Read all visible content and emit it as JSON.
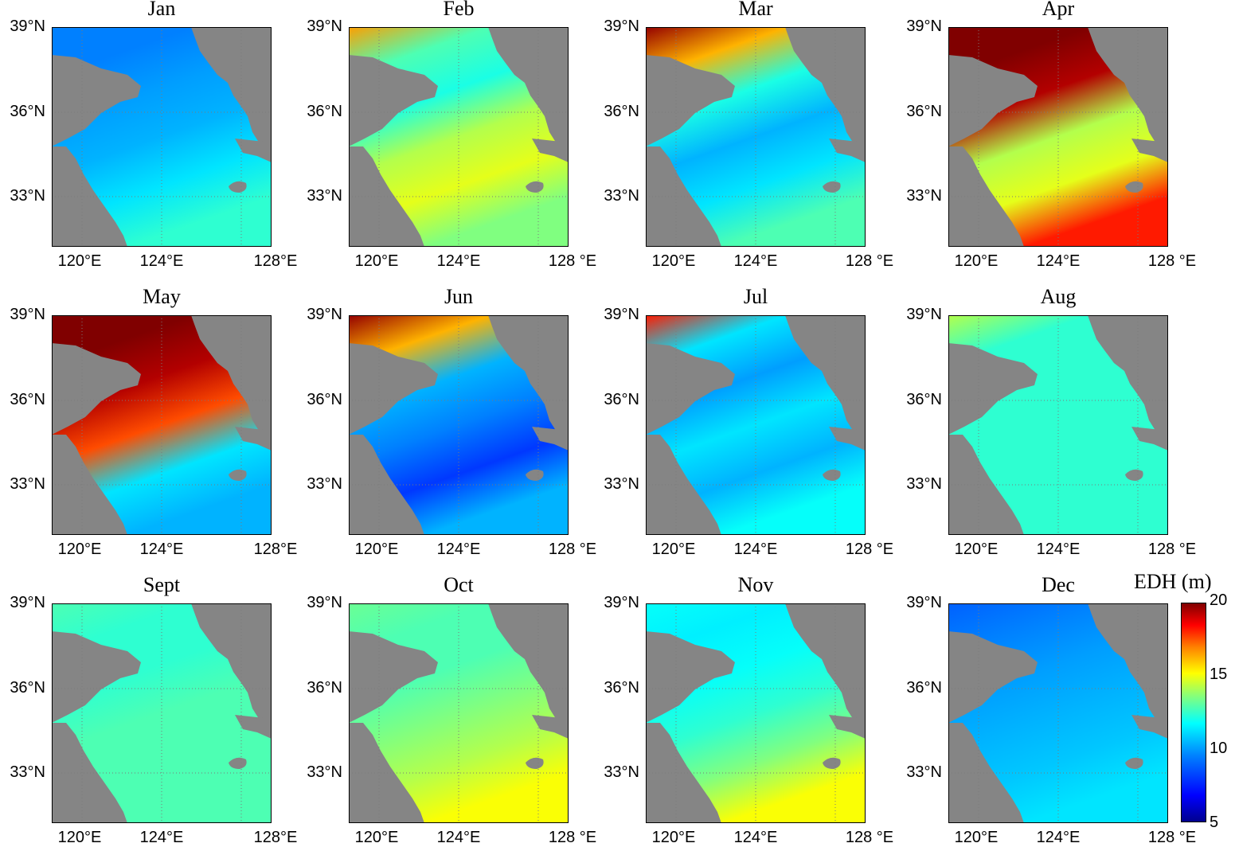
{
  "figure": {
    "panels": [
      {
        "month": "Jan",
        "pattern": [
          0.25,
          0.25,
          0.28,
          0.3,
          0.35,
          0.42
        ]
      },
      {
        "month": "Feb",
        "pattern": [
          0.72,
          0.45,
          0.4,
          0.55,
          0.6,
          0.5
        ]
      },
      {
        "month": "Mar",
        "pattern": [
          0.98,
          0.7,
          0.4,
          0.3,
          0.35,
          0.45
        ]
      },
      {
        "month": "Apr",
        "pattern": [
          1.0,
          1.0,
          0.95,
          0.55,
          0.6,
          0.85
        ]
      },
      {
        "month": "May",
        "pattern": [
          1.0,
          1.0,
          0.95,
          0.8,
          0.35,
          0.3
        ]
      },
      {
        "month": "Jun",
        "pattern": [
          0.98,
          0.7,
          0.3,
          0.25,
          0.18,
          0.3
        ]
      },
      {
        "month": "Jul",
        "pattern": [
          0.85,
          0.35,
          0.28,
          0.35,
          0.3,
          0.38
        ]
      },
      {
        "month": "Aug",
        "pattern": [
          0.55,
          0.42,
          0.42,
          0.42,
          0.42,
          0.42
        ]
      },
      {
        "month": "Sept",
        "pattern": [
          0.45,
          0.42,
          0.42,
          0.45,
          0.45,
          0.45
        ]
      },
      {
        "month": "Oct",
        "pattern": [
          0.48,
          0.45,
          0.45,
          0.5,
          0.55,
          0.62
        ]
      },
      {
        "month": "Nov",
        "pattern": [
          0.38,
          0.36,
          0.38,
          0.42,
          0.5,
          0.62
        ]
      },
      {
        "month": "Dec",
        "pattern": [
          0.22,
          0.25,
          0.28,
          0.3,
          0.32,
          0.35
        ]
      }
    ],
    "lat_ticks": [
      "39°N",
      "36°N",
      "33°N"
    ],
    "lon_ticks": [
      "120°E",
      "124°E",
      "128°E"
    ],
    "lon_ticks_right_col": [
      "120°E",
      "124°E",
      "128 °E"
    ],
    "colorbar": {
      "title": "EDH (m)",
      "ticks": [
        "20",
        "15",
        "10",
        "5"
      ],
      "range": [
        5,
        20
      ]
    },
    "colors": {
      "land": "#858585",
      "grid": "#7a7a7a"
    }
  }
}
